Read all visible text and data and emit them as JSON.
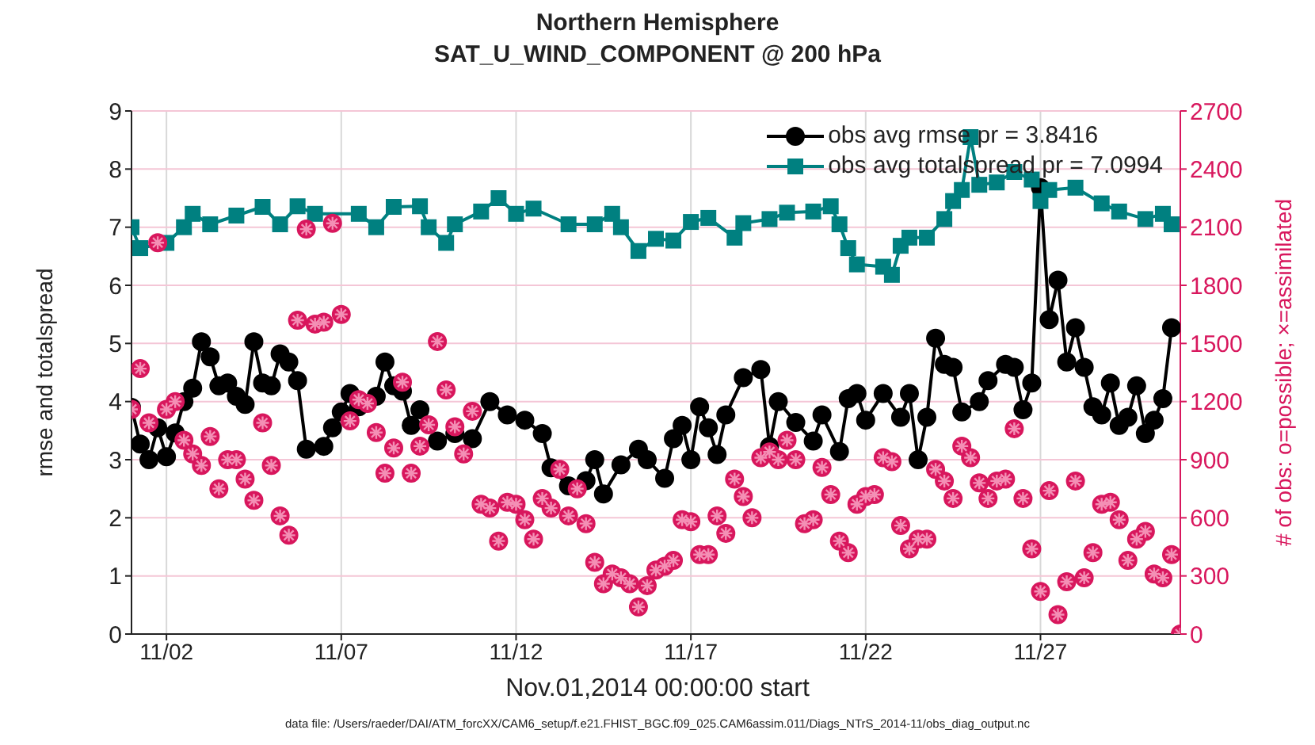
{
  "chart_data": {
    "type": "line",
    "title": "Northern Hemisphere",
    "subtitle": "SAT_U_WIND_COMPONENT @ 200 hPa",
    "xlabel": "Nov.01,2014 00:00:00 start",
    "ylabel": "rmse and totalspread",
    "y2label": "# of obs: o=possible; ×=assimilated",
    "annotations": [
      "data file: /Users/raeder/DAI/ATM_forcXX/CAM6_setup/f.e21.FHIST_BGC.f09_025.CAM6assim.011/Diags_NTrS_2014-11/obs_diag_output.nc"
    ],
    "xlim": [
      "2014-11-01T00:00",
      "2014-12-01T00:00"
    ],
    "xticks": [
      {
        "value": "2014-11-02",
        "label": "11/02"
      },
      {
        "value": "2014-11-07",
        "label": "11/07"
      },
      {
        "value": "2014-11-12",
        "label": "11/12"
      },
      {
        "value": "2014-11-17",
        "label": "11/17"
      },
      {
        "value": "2014-11-22",
        "label": "11/22"
      },
      {
        "value": "2014-11-27",
        "label": "11/27"
      }
    ],
    "ylim": [
      0,
      9
    ],
    "yticks": [
      0,
      1,
      2,
      3,
      4,
      5,
      6,
      7,
      8,
      9
    ],
    "y2lim": [
      0,
      2700
    ],
    "y2ticks": [
      0,
      300,
      600,
      900,
      1200,
      1500,
      1800,
      2100,
      2400,
      2700
    ],
    "grid": true,
    "legend": "top right",
    "line_style": "solid",
    "x": [
      "2014-11-01T00:00",
      "2014-11-01T06:00",
      "2014-11-01T12:00",
      "2014-11-01T18:00",
      "2014-11-02T00:00",
      "2014-11-02T06:00",
      "2014-11-02T12:00",
      "2014-11-02T18:00",
      "2014-11-03T00:00",
      "2014-11-03T06:00",
      "2014-11-03T12:00",
      "2014-11-03T18:00",
      "2014-11-04T00:00",
      "2014-11-04T06:00",
      "2014-11-04T12:00",
      "2014-11-04T18:00",
      "2014-11-05T00:00",
      "2014-11-05T06:00",
      "2014-11-05T12:00",
      "2014-11-05T18:00",
      "2014-11-06T00:00",
      "2014-11-06T06:00",
      "2014-11-06T12:00",
      "2014-11-06T18:00",
      "2014-11-07T00:00",
      "2014-11-07T06:00",
      "2014-11-07T12:00",
      "2014-11-07T18:00",
      "2014-11-08T00:00",
      "2014-11-08T06:00",
      "2014-11-08T12:00",
      "2014-11-08T18:00",
      "2014-11-09T00:00",
      "2014-11-09T06:00",
      "2014-11-09T12:00",
      "2014-11-09T18:00",
      "2014-11-10T00:00",
      "2014-11-10T06:00",
      "2014-11-10T12:00",
      "2014-11-10T18:00",
      "2014-11-11T00:00",
      "2014-11-11T06:00",
      "2014-11-11T12:00",
      "2014-11-11T18:00",
      "2014-11-12T00:00",
      "2014-11-12T06:00",
      "2014-11-12T12:00",
      "2014-11-12T18:00",
      "2014-11-13T00:00",
      "2014-11-13T06:00",
      "2014-11-13T12:00",
      "2014-11-13T18:00",
      "2014-11-14T00:00",
      "2014-11-14T06:00",
      "2014-11-14T12:00",
      "2014-11-14T18:00",
      "2014-11-15T00:00",
      "2014-11-15T06:00",
      "2014-11-15T12:00",
      "2014-11-15T18:00",
      "2014-11-16T00:00",
      "2014-11-16T06:00",
      "2014-11-16T12:00",
      "2014-11-16T18:00",
      "2014-11-17T00:00",
      "2014-11-17T06:00",
      "2014-11-17T12:00",
      "2014-11-17T18:00",
      "2014-11-18T00:00",
      "2014-11-18T06:00",
      "2014-11-18T12:00",
      "2014-11-18T18:00",
      "2014-11-19T00:00",
      "2014-11-19T06:00",
      "2014-11-19T12:00",
      "2014-11-19T18:00",
      "2014-11-20T00:00",
      "2014-11-20T06:00",
      "2014-11-20T12:00",
      "2014-11-20T18:00",
      "2014-11-21T00:00",
      "2014-11-21T06:00",
      "2014-11-21T12:00",
      "2014-11-21T18:00",
      "2014-11-22T00:00",
      "2014-11-22T06:00",
      "2014-11-22T12:00",
      "2014-11-22T18:00",
      "2014-11-23T00:00",
      "2014-11-23T06:00",
      "2014-11-23T12:00",
      "2014-11-23T18:00",
      "2014-11-24T00:00",
      "2014-11-24T06:00",
      "2014-11-24T12:00",
      "2014-11-24T18:00",
      "2014-11-25T00:00",
      "2014-11-25T06:00",
      "2014-11-25T12:00",
      "2014-11-25T18:00",
      "2014-11-26T00:00",
      "2014-11-26T06:00",
      "2014-11-26T12:00",
      "2014-11-26T18:00",
      "2014-11-27T00:00",
      "2014-11-27T06:00",
      "2014-11-27T12:00",
      "2014-11-27T18:00",
      "2014-11-28T00:00",
      "2014-11-28T06:00",
      "2014-11-28T12:00",
      "2014-11-28T18:00",
      "2014-11-29T00:00",
      "2014-11-29T06:00",
      "2014-11-29T12:00",
      "2014-11-29T18:00",
      "2014-11-30T00:00",
      "2014-11-30T06:00",
      "2014-11-30T12:00",
      "2014-11-30T18:00",
      "2014-12-01T00:00"
    ],
    "series": [
      {
        "name": "obs avg rmse pr = 3.8416",
        "marker": "circle",
        "color": "#000000",
        "x": [
          "2014-11-01T00:00",
          "2014-11-01T06:00",
          "2014-11-01T12:00",
          "2014-11-01T18:00",
          "2014-11-02T00:00",
          "2014-11-02T06:00",
          "2014-11-02T12:00",
          "2014-11-02T18:00",
          "2014-11-03T00:00",
          "2014-11-03T06:00",
          "2014-11-03T12:00",
          "2014-11-03T18:00",
          "2014-11-04T00:00",
          "2014-11-04T06:00",
          "2014-11-04T12:00",
          "2014-11-04T18:00",
          "2014-11-05T00:00",
          "2014-11-05T06:00",
          "2014-11-05T12:00",
          "2014-11-05T18:00",
          "2014-11-06T00:00",
          "2014-11-06T12:00",
          "2014-11-06T18:00",
          "2014-11-07T00:00",
          "2014-11-07T06:00",
          "2014-11-07T12:00",
          "2014-11-08T00:00",
          "2014-11-08T06:00",
          "2014-11-08T12:00",
          "2014-11-08T18:00",
          "2014-11-09T00:00",
          "2014-11-09T06:00",
          "2014-11-09T18:00",
          "2014-11-10T06:00",
          "2014-11-10T18:00",
          "2014-11-11T06:00",
          "2014-11-11T18:00",
          "2014-11-12T06:00",
          "2014-11-12T18:00",
          "2014-11-13T00:00",
          "2014-11-13T12:00",
          "2014-11-14T00:00",
          "2014-11-14T06:00",
          "2014-11-14T12:00",
          "2014-11-15T00:00",
          "2014-11-15T12:00",
          "2014-11-15T18:00",
          "2014-11-16T06:00",
          "2014-11-16T12:00",
          "2014-11-16T18:00",
          "2014-11-17T00:00",
          "2014-11-17T06:00",
          "2014-11-17T12:00",
          "2014-11-17T18:00",
          "2014-11-18T00:00",
          "2014-11-18T12:00",
          "2014-11-19T00:00",
          "2014-11-19T06:00",
          "2014-11-19T12:00",
          "2014-11-20T00:00",
          "2014-11-20T12:00",
          "2014-11-20T18:00",
          "2014-11-21T06:00",
          "2014-11-21T12:00",
          "2014-11-21T18:00",
          "2014-11-22T00:00",
          "2014-11-22T12:00",
          "2014-11-23T00:00",
          "2014-11-23T06:00",
          "2014-11-23T12:00",
          "2014-11-23T18:00",
          "2014-11-24T00:00",
          "2014-11-24T06:00",
          "2014-11-24T12:00",
          "2014-11-24T18:00",
          "2014-11-25T06:00",
          "2014-11-25T12:00",
          "2014-11-26T00:00",
          "2014-11-26T06:00",
          "2014-11-26T12:00",
          "2014-11-26T18:00",
          "2014-11-27T00:00",
          "2014-11-27T06:00",
          "2014-11-27T12:00",
          "2014-11-27T18:00",
          "2014-11-28T00:00",
          "2014-11-28T06:00",
          "2014-11-28T12:00",
          "2014-11-28T18:00",
          "2014-11-29T00:00",
          "2014-11-29T06:00",
          "2014-11-29T12:00",
          "2014-11-29T18:00",
          "2014-11-30T00:00",
          "2014-11-30T06:00",
          "2014-11-30T12:00",
          "2014-11-30T18:00"
        ],
        "values": [
          3.9,
          3.27,
          3.0,
          3.55,
          3.05,
          3.46,
          4.0,
          4.23,
          5.03,
          4.77,
          4.27,
          4.32,
          4.09,
          3.95,
          5.03,
          4.32,
          4.27,
          4.82,
          4.68,
          4.36,
          3.18,
          3.23,
          3.55,
          3.82,
          4.14,
          3.91,
          4.09,
          4.68,
          4.27,
          4.18,
          3.59,
          3.86,
          3.32,
          3.45,
          3.36,
          4.0,
          3.77,
          3.68,
          3.45,
          2.86,
          2.55,
          2.64,
          3.0,
          2.41,
          2.91,
          3.18,
          3.0,
          2.68,
          3.36,
          3.59,
          3.0,
          3.91,
          3.55,
          3.09,
          3.77,
          4.41,
          4.55,
          3.23,
          4.0,
          3.64,
          3.32,
          3.77,
          3.14,
          4.05,
          4.14,
          3.68,
          4.14,
          3.73,
          4.14,
          3.0,
          3.73,
          5.09,
          4.64,
          4.59,
          3.82,
          4.0,
          4.36,
          4.64,
          4.59,
          3.86,
          4.32,
          7.68,
          5.41,
          6.09,
          4.68,
          5.27,
          4.59,
          3.91,
          3.77,
          4.32,
          3.59,
          3.73,
          4.27,
          3.45,
          3.68,
          4.05,
          5.27
        ]
      },
      {
        "name": "obs avg totalspread pr = 7.0994",
        "marker": "square",
        "color": "#008080",
        "x": [
          "2014-11-01T00:00",
          "2014-11-01T06:00",
          "2014-11-02T00:00",
          "2014-11-02T12:00",
          "2014-11-02T18:00",
          "2014-11-03T06:00",
          "2014-11-04T00:00",
          "2014-11-04T18:00",
          "2014-11-05T06:00",
          "2014-11-05T18:00",
          "2014-11-06T06:00",
          "2014-11-07T12:00",
          "2014-11-08T00:00",
          "2014-11-08T12:00",
          "2014-11-09T06:00",
          "2014-11-09T12:00",
          "2014-11-10T00:00",
          "2014-11-10T06:00",
          "2014-11-11T00:00",
          "2014-11-11T12:00",
          "2014-11-12T00:00",
          "2014-11-12T12:00",
          "2014-11-13T12:00",
          "2014-11-14T06:00",
          "2014-11-14T18:00",
          "2014-11-15T00:00",
          "2014-11-15T12:00",
          "2014-11-16T00:00",
          "2014-11-16T12:00",
          "2014-11-17T00:00",
          "2014-11-17T12:00",
          "2014-11-18T06:00",
          "2014-11-18T12:00",
          "2014-11-19T06:00",
          "2014-11-19T18:00",
          "2014-11-20T12:00",
          "2014-11-21T00:00",
          "2014-11-21T06:00",
          "2014-11-21T12:00",
          "2014-11-21T18:00",
          "2014-11-22T12:00",
          "2014-11-22T18:00",
          "2014-11-23T00:00",
          "2014-11-23T06:00",
          "2014-11-23T18:00",
          "2014-11-24T06:00",
          "2014-11-24T12:00",
          "2014-11-24T18:00",
          "2014-11-25T00:00",
          "2014-11-25T06:00",
          "2014-11-25T18:00",
          "2014-11-26T06:00",
          "2014-11-26T18:00",
          "2014-11-27T00:00",
          "2014-11-27T06:00",
          "2014-11-28T00:00",
          "2014-11-28T18:00",
          "2014-11-29T06:00",
          "2014-11-30T00:00",
          "2014-11-30T12:00",
          "2014-11-30T18:00"
        ],
        "values": [
          7.0,
          6.64,
          6.73,
          7.0,
          7.23,
          7.05,
          7.2,
          7.35,
          7.05,
          7.36,
          7.23,
          7.23,
          7.0,
          7.35,
          7.36,
          7.0,
          6.73,
          7.05,
          7.27,
          7.5,
          7.23,
          7.32,
          7.05,
          7.05,
          7.23,
          7.0,
          6.59,
          6.8,
          6.77,
          7.09,
          7.16,
          6.82,
          7.07,
          7.14,
          7.25,
          7.27,
          7.36,
          7.05,
          6.64,
          6.36,
          6.32,
          6.18,
          6.68,
          6.82,
          6.82,
          7.14,
          7.45,
          7.64,
          8.55,
          7.73,
          7.77,
          7.95,
          7.82,
          7.45,
          7.64,
          7.68,
          7.41,
          7.27,
          7.14,
          7.23,
          7.05
        ]
      },
      {
        "type": "scatter",
        "axis": "y2",
        "marker": "circle",
        "color": "#d8175d",
        "values": [
          1160,
          1370,
          1090,
          2020,
          1160,
          1200,
          1000,
          930,
          870,
          1020,
          750,
          900,
          900,
          800,
          690,
          1090,
          870,
          610,
          510,
          1620,
          2090,
          1600,
          1610,
          2120,
          1650,
          1100,
          1210,
          1190,
          1040,
          830,
          960,
          1300,
          830,
          970,
          1080,
          1510,
          1260,
          1070,
          930,
          1150,
          670,
          650,
          480,
          680,
          670,
          590,
          490,
          700,
          650,
          850,
          610,
          750,
          570,
          370,
          260,
          310,
          290,
          260,
          140,
          250,
          330,
          350,
          380,
          590,
          580,
          410,
          410,
          610,
          520,
          800,
          710,
          600,
          910,
          940,
          900,
          1000,
          900,
          570,
          590,
          860,
          720,
          480,
          420,
          670,
          710,
          720,
          910,
          890,
          560,
          440,
          490,
          490,
          850,
          790,
          700,
          970,
          910,
          780,
          700,
          790,
          800,
          1060,
          700,
          440,
          220,
          740,
          100,
          270,
          790,
          290,
          420,
          670,
          680,
          590,
          380,
          490,
          530,
          310,
          290,
          410,
          0
        ]
      },
      {
        "type": "scatter",
        "axis": "y2",
        "marker": "cross",
        "color": "#f48fb5",
        "values": [
          1160,
          1370,
          1090,
          2020,
          1160,
          1200,
          1000,
          930,
          870,
          1020,
          750,
          900,
          900,
          800,
          690,
          1090,
          870,
          610,
          510,
          1620,
          2090,
          1600,
          1610,
          2120,
          1650,
          1100,
          1210,
          1190,
          1040,
          830,
          960,
          1300,
          830,
          970,
          1080,
          1510,
          1260,
          1070,
          930,
          1150,
          670,
          650,
          480,
          680,
          670,
          590,
          490,
          700,
          650,
          850,
          610,
          750,
          570,
          370,
          260,
          310,
          290,
          260,
          140,
          250,
          330,
          350,
          380,
          590,
          580,
          410,
          410,
          610,
          520,
          800,
          710,
          600,
          910,
          940,
          900,
          1000,
          900,
          570,
          590,
          860,
          720,
          480,
          420,
          670,
          710,
          720,
          910,
          890,
          560,
          440,
          490,
          490,
          850,
          790,
          700,
          970,
          910,
          780,
          700,
          790,
          800,
          1060,
          700,
          440,
          220,
          740,
          100,
          270,
          790,
          290,
          420,
          670,
          680,
          590,
          380,
          490,
          530,
          310,
          290,
          410,
          0
        ]
      }
    ]
  }
}
